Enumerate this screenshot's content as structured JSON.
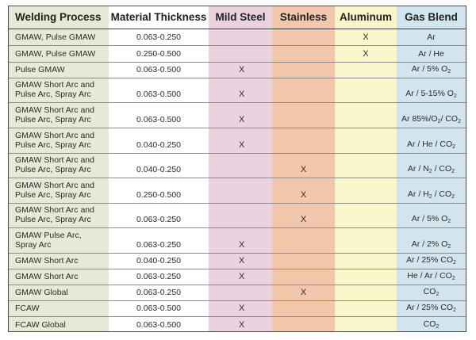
{
  "colors": {
    "welding_process_col": "#e4ead6",
    "material_thickness_col": "#ffffff",
    "mild_steel_col": "#ead3df",
    "stainless_col": "#f2c7ab",
    "aluminum_col": "#fbf5cc",
    "gas_blend_col": "#d2e5ee",
    "border": "#4a4a4a"
  },
  "headers": {
    "welding_process": "Welding Process",
    "material_thickness": "Material Thickness",
    "mild_steel": "Mild Steel",
    "stainless": "Stainless",
    "aluminum": "Aluminum",
    "gas_blend": "Gas Blend"
  },
  "rows": [
    {
      "process_l1": "GMAW, Pulse GMAW",
      "process_l2": "",
      "thickness": "0.063-0.250",
      "mild_steel": "",
      "stainless": "",
      "aluminum": "X",
      "gas": "Ar",
      "gas_sub": "",
      "gas_tail": ""
    },
    {
      "process_l1": "GMAW, Pulse GMAW",
      "process_l2": "",
      "thickness": "0.250-0.500",
      "mild_steel": "",
      "stainless": "",
      "aluminum": "X",
      "gas": "Ar / He",
      "gas_sub": "",
      "gas_tail": ""
    },
    {
      "process_l1": "Pulse GMAW",
      "process_l2": "",
      "thickness": "0.063-0.500",
      "mild_steel": "X",
      "stainless": "",
      "aluminum": "",
      "gas": "Ar / 5% O",
      "gas_sub": "2",
      "gas_tail": ""
    },
    {
      "process_l1": "GMAW Short Arc and",
      "process_l2": "Pulse Arc, Spray Arc",
      "thickness": "0.063-0.500",
      "mild_steel": "X",
      "stainless": "",
      "aluminum": "",
      "gas": "Ar / 5-15% O",
      "gas_sub": "2",
      "gas_tail": ""
    },
    {
      "process_l1": "GMAW Short Arc and",
      "process_l2": "Pulse Arc, Spray Arc",
      "thickness": "0.063-0.500",
      "mild_steel": "X",
      "stainless": "",
      "aluminum": "",
      "gas": "Ar 85%/O",
      "gas_sub": "2",
      "gas_tail": "/ CO",
      "gas_sub2": "2"
    },
    {
      "process_l1": "GMAW Short Arc and",
      "process_l2": "Pulse Arc, Spray Arc",
      "thickness": "0.040-0.250",
      "mild_steel": "X",
      "stainless": "",
      "aluminum": "",
      "gas": "Ar / He / CO",
      "gas_sub": "2",
      "gas_tail": ""
    },
    {
      "process_l1": "GMAW Short Arc and",
      "process_l2": "Pulse Arc, Spray Arc",
      "thickness": "0.040-0.250",
      "mild_steel": "",
      "stainless": "X",
      "aluminum": "",
      "gas": "Ar / N",
      "gas_sub": "2",
      "gas_tail": " / CO",
      "gas_sub2": "2"
    },
    {
      "process_l1": "GMAW Short Arc and",
      "process_l2": "Pulse Arc, Spray Arc",
      "thickness": "0.250-0.500",
      "mild_steel": "",
      "stainless": "X",
      "aluminum": "",
      "gas": "Ar / H",
      "gas_sub": "2",
      "gas_tail": " / CO",
      "gas_sub2": "2"
    },
    {
      "process_l1": "GMAW Short Arc and",
      "process_l2": "Pulse Arc, Spray Arc",
      "thickness": "0.063-0.250",
      "mild_steel": "",
      "stainless": "X",
      "aluminum": "",
      "gas": "Ar / 5% O",
      "gas_sub": "2",
      "gas_tail": ""
    },
    {
      "process_l1": "GMAW Pulse Arc,",
      "process_l2": "Spray Arc",
      "thickness": "0.063-0.250",
      "mild_steel": "X",
      "stainless": "",
      "aluminum": "",
      "gas": "Ar / 2% O",
      "gas_sub": "2",
      "gas_tail": ""
    },
    {
      "process_l1": "GMAW Short Arc",
      "process_l2": "",
      "thickness": "0.040-0.250",
      "mild_steel": "X",
      "stainless": "",
      "aluminum": "",
      "gas": "Ar / 25% CO",
      "gas_sub": "2",
      "gas_tail": ""
    },
    {
      "process_l1": "GMAW Short Arc",
      "process_l2": "",
      "thickness": "0.063-0.250",
      "mild_steel": "X",
      "stainless": "",
      "aluminum": "",
      "gas": "He / Ar / CO",
      "gas_sub": "2",
      "gas_tail": ""
    },
    {
      "process_l1": "GMAW Global",
      "process_l2": "",
      "thickness": "0.063-0.250",
      "mild_steel": "",
      "stainless": "X",
      "aluminum": "",
      "gas": "CO",
      "gas_sub": "2",
      "gas_tail": ""
    },
    {
      "process_l1": "FCAW",
      "process_l2": "",
      "thickness": "0.063-0.500",
      "mild_steel": "X",
      "stainless": "",
      "aluminum": "",
      "gas": "Ar / 25% CO",
      "gas_sub": "2",
      "gas_tail": ""
    },
    {
      "process_l1": "FCAW Global",
      "process_l2": "",
      "thickness": "0.063-0.500",
      "mild_steel": "X",
      "stainless": "",
      "aluminum": "",
      "gas": "CO",
      "gas_sub": "2",
      "gas_tail": ""
    }
  ]
}
